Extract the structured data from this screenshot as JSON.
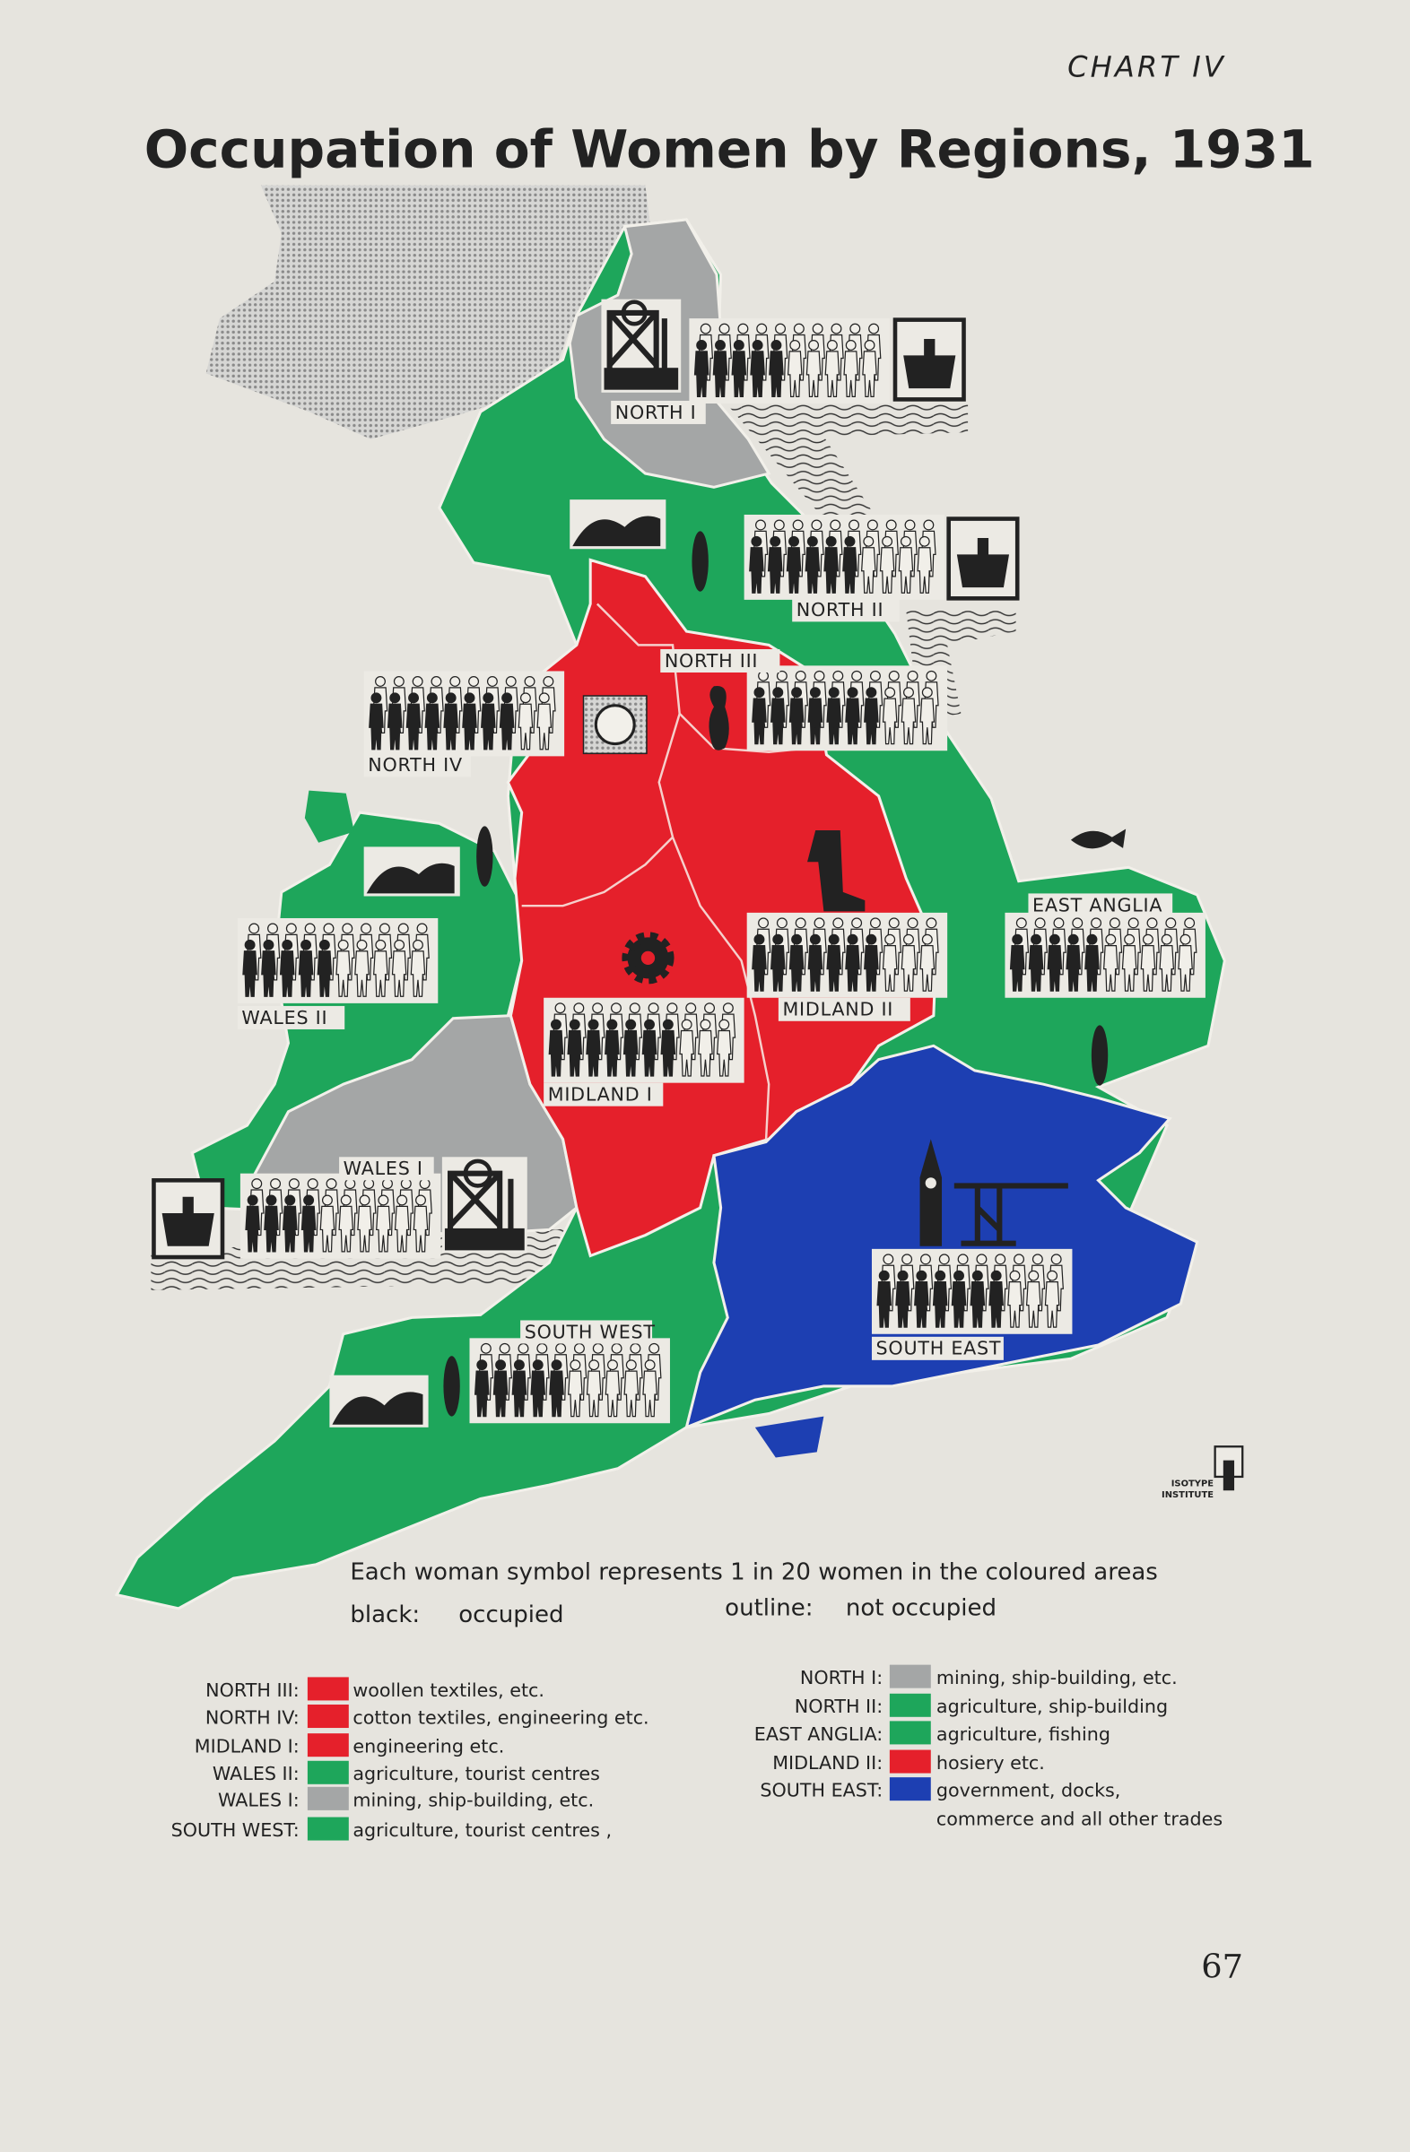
{
  "chart_label": "CHART IV",
  "title": "Occupation of Women by Regions, 1931",
  "note": {
    "line1": "Each woman symbol represents 1 in 20 women in the coloured areas",
    "black_label": "black:",
    "black_meaning": "occupied",
    "outline_label": "outline:",
    "outline_meaning": "not occupied"
  },
  "colors": {
    "red": "#e5202b",
    "green": "#1ea65b",
    "grey": "#a4a6a6",
    "blue": "#1d3fb2",
    "paper": "#e6e4de",
    "ink": "#222222"
  },
  "chart_data": {
    "type": "pictogram-map",
    "unit": "1 symbol = 1 in 20 women",
    "symbols_per_region": 20,
    "regions": [
      {
        "name": "NORTH I",
        "color": "grey",
        "occupied_symbols": 5,
        "icons": [
          "mine-headframe",
          "ship"
        ]
      },
      {
        "name": "NORTH II",
        "color": "green",
        "occupied_symbols": 6,
        "icons": [
          "hills",
          "wheat",
          "ship"
        ]
      },
      {
        "name": "NORTH III",
        "color": "red",
        "occupied_symbols": 7,
        "icons": [
          "yarn-skein"
        ]
      },
      {
        "name": "NORTH IV",
        "color": "red",
        "occupied_symbols": 8,
        "icons": [
          "cotton-boll"
        ]
      },
      {
        "name": "WALES II",
        "color": "green",
        "occupied_symbols": 5,
        "icons": [
          "hills",
          "wheat"
        ]
      },
      {
        "name": "EAST ANGLIA",
        "color": "green",
        "occupied_symbols": 5,
        "icons": [
          "fish",
          "wheat"
        ]
      },
      {
        "name": "MIDLAND II",
        "color": "red",
        "occupied_symbols": 7,
        "icons": [
          "stocking"
        ]
      },
      {
        "name": "MIDLAND I",
        "color": "red",
        "occupied_symbols": 7,
        "icons": [
          "gear"
        ]
      },
      {
        "name": "WALES I",
        "color": "grey",
        "occupied_symbols": 4,
        "icons": [
          "ship",
          "mine-headframe"
        ]
      },
      {
        "name": "SOUTH WEST",
        "color": "green",
        "occupied_symbols": 5,
        "icons": [
          "hills",
          "wheat"
        ]
      },
      {
        "name": "SOUTH EAST",
        "color": "blue",
        "occupied_symbols": 7,
        "icons": [
          "big-ben",
          "crane"
        ]
      }
    ]
  },
  "legend": {
    "left": [
      {
        "label": "NORTH III:",
        "color": "red",
        "text": "woollen textiles, etc."
      },
      {
        "label": "NORTH IV:",
        "color": "red",
        "text": "cotton textiles, engineering etc."
      },
      {
        "label": "MIDLAND I:",
        "color": "red",
        "text": "engineering etc."
      },
      {
        "label": "WALES II:",
        "color": "green",
        "text": "agriculture, tourist centres"
      },
      {
        "label": "WALES I:",
        "color": "grey",
        "text": "mining, ship-building, etc."
      },
      {
        "label": "SOUTH WEST:",
        "color": "green",
        "text": "agriculture, tourist centres ,"
      }
    ],
    "right": [
      {
        "label": "NORTH I:",
        "color": "grey",
        "text": "mining, ship-building, etc."
      },
      {
        "label": "NORTH II:",
        "color": "green",
        "text": "agriculture, ship-building"
      },
      {
        "label": "EAST ANGLIA:",
        "color": "green",
        "text": "agriculture, fishing"
      },
      {
        "label": "MIDLAND II:",
        "color": "red",
        "text": "hosiery etc."
      },
      {
        "label": "SOUTH EAST:",
        "color": "blue",
        "text": "government, docks,"
      }
    ],
    "right_continuation": "commerce and all other trades"
  },
  "logo": {
    "line1": "ISOTYPE",
    "line2": "INSTITUTE"
  },
  "page_number": "67"
}
